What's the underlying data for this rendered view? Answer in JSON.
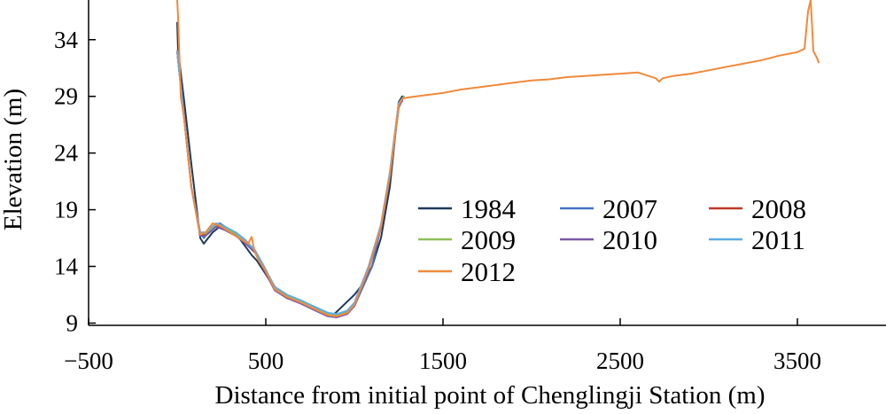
{
  "chart_data": {
    "type": "line",
    "title": "",
    "xlabel": "Distance from initial point of Chenglingji Station (m)",
    "ylabel": "Elevation (m)",
    "xlim": [
      -500,
      4000
    ],
    "ylim": [
      8.8,
      37.5
    ],
    "xticks": [
      -500,
      500,
      1500,
      2500,
      3500
    ],
    "xtick_labels": [
      "−500",
      "500",
      "1500",
      "2500",
      "3500"
    ],
    "yticks": [
      9,
      14,
      19,
      24,
      29,
      34
    ],
    "ytick_labels": [
      "9",
      "14",
      "19",
      "24",
      "29",
      "34"
    ],
    "grid": false,
    "legend_position": "center-right",
    "series": [
      {
        "name": "1984",
        "color": "#1f3a5f",
        "x": [
          0,
          5,
          40,
          80,
          130,
          150,
          200,
          240,
          300,
          350,
          420,
          450,
          500,
          560,
          620,
          700,
          780,
          850,
          880,
          920,
          1000,
          1050,
          1100,
          1150,
          1200,
          1230,
          1250,
          1270
        ],
        "y": [
          35.5,
          33,
          28.5,
          23,
          16.5,
          16,
          17,
          17.5,
          17,
          16.5,
          15,
          14.5,
          13.3,
          11.8,
          11.2,
          10.9,
          10.4,
          9.9,
          9.7,
          10.3,
          11.5,
          12.5,
          14,
          16.5,
          21,
          25.5,
          28.5,
          29
        ]
      },
      {
        "name": "2007",
        "color": "#4472c4",
        "x": [
          0,
          40,
          80,
          130,
          150,
          200,
          240,
          300,
          350,
          400,
          450,
          500,
          560,
          620,
          700,
          780,
          850,
          900,
          950,
          1000,
          1100,
          1150,
          1200,
          1250,
          1270
        ],
        "y": [
          33,
          27,
          21,
          17,
          16.5,
          17.5,
          17.8,
          17.2,
          16.5,
          16,
          15,
          13.5,
          12,
          11.3,
          10.9,
          10.3,
          9.8,
          9.6,
          9.8,
          10.5,
          14,
          17.5,
          22,
          28,
          28.7
        ]
      },
      {
        "name": "2008",
        "color": "#c0392b",
        "x": [
          0,
          40,
          80,
          130,
          160,
          220,
          270,
          330,
          380,
          440,
          490,
          550,
          620,
          700,
          780,
          850,
          900,
          960,
          1000,
          1080,
          1150,
          1200,
          1250,
          1270
        ],
        "y": [
          33,
          27,
          21,
          16.8,
          16.8,
          17.6,
          17.3,
          16.8,
          16.2,
          15.3,
          13.8,
          12,
          11.3,
          10.8,
          10.2,
          9.7,
          9.6,
          9.9,
          10.6,
          13.8,
          17.5,
          22,
          28.2,
          28.7
        ]
      },
      {
        "name": "2009",
        "color": "#8fbf5a",
        "x": [
          0,
          40,
          80,
          130,
          160,
          220,
          270,
          330,
          380,
          440,
          490,
          550,
          620,
          700,
          780,
          850,
          900,
          960,
          1000,
          1080,
          1150,
          1200,
          1250,
          1280
        ],
        "y": [
          33,
          27,
          21,
          16.9,
          16.9,
          17.7,
          17.4,
          16.9,
          16.3,
          15.3,
          13.9,
          12.1,
          11.4,
          10.9,
          10.3,
          9.8,
          9.7,
          10,
          10.7,
          13.9,
          17.6,
          22.2,
          28.3,
          29
        ]
      },
      {
        "name": "2010",
        "color": "#7b5aa6",
        "x": [
          0,
          40,
          80,
          130,
          160,
          220,
          270,
          330,
          380,
          440,
          490,
          550,
          620,
          700,
          780,
          850,
          900,
          960,
          1000,
          1080,
          1150,
          1200,
          1250,
          1270
        ],
        "y": [
          33,
          27,
          21,
          16.7,
          16.7,
          17.5,
          17.2,
          16.7,
          16.1,
          15.2,
          13.7,
          11.9,
          11.2,
          10.7,
          10.1,
          9.6,
          9.5,
          9.8,
          10.5,
          13.7,
          17.4,
          21.9,
          28.1,
          28.6
        ]
      },
      {
        "name": "2011",
        "color": "#5dade2",
        "x": [
          0,
          40,
          80,
          130,
          160,
          220,
          270,
          330,
          380,
          440,
          490,
          550,
          620,
          700,
          780,
          850,
          900,
          960,
          1000,
          1080,
          1150,
          1200,
          1250,
          1270
        ],
        "y": [
          33,
          27,
          21,
          17,
          17,
          17.8,
          17.5,
          17,
          16.4,
          15.4,
          14,
          12.2,
          11.5,
          11,
          10.4,
          9.9,
          9.8,
          10.1,
          10.8,
          14,
          17.7,
          22.3,
          28.4,
          28.8
        ]
      },
      {
        "name": "2012",
        "color": "#f08a3c",
        "x": [
          0,
          5,
          20,
          40,
          80,
          130,
          160,
          200,
          240,
          280,
          320,
          360,
          400,
          420,
          430,
          440,
          460,
          500,
          550,
          620,
          700,
          780,
          850,
          900,
          960,
          1000,
          1080,
          1150,
          1200,
          1250,
          1270,
          1300,
          1400,
          1500,
          1600,
          1700,
          1800,
          1900,
          2000,
          2100,
          2200,
          2300,
          2400,
          2500,
          2600,
          2700,
          2720,
          2740,
          2800,
          2900,
          3000,
          3100,
          3200,
          3300,
          3400,
          3500,
          3540,
          3560,
          3575,
          3590,
          3610,
          3620
        ],
        "y": [
          37.5,
          36,
          29,
          27,
          21,
          16.8,
          17,
          17.8,
          17.6,
          17.2,
          16.8,
          16.4,
          16,
          16.6,
          15.8,
          15.2,
          14.5,
          13.6,
          12,
          11.3,
          10.8,
          10.2,
          9.7,
          9.6,
          9.9,
          10.6,
          13.8,
          17.5,
          22,
          28.2,
          28.8,
          28.9,
          29.1,
          29.3,
          29.6,
          29.8,
          30,
          30.2,
          30.4,
          30.5,
          30.7,
          30.8,
          30.9,
          31,
          31.1,
          30.6,
          30.3,
          30.6,
          30.8,
          31,
          31.3,
          31.6,
          31.9,
          32.2,
          32.6,
          32.9,
          33.2,
          36.5,
          37.5,
          33,
          32.4,
          32
        ]
      }
    ]
  }
}
